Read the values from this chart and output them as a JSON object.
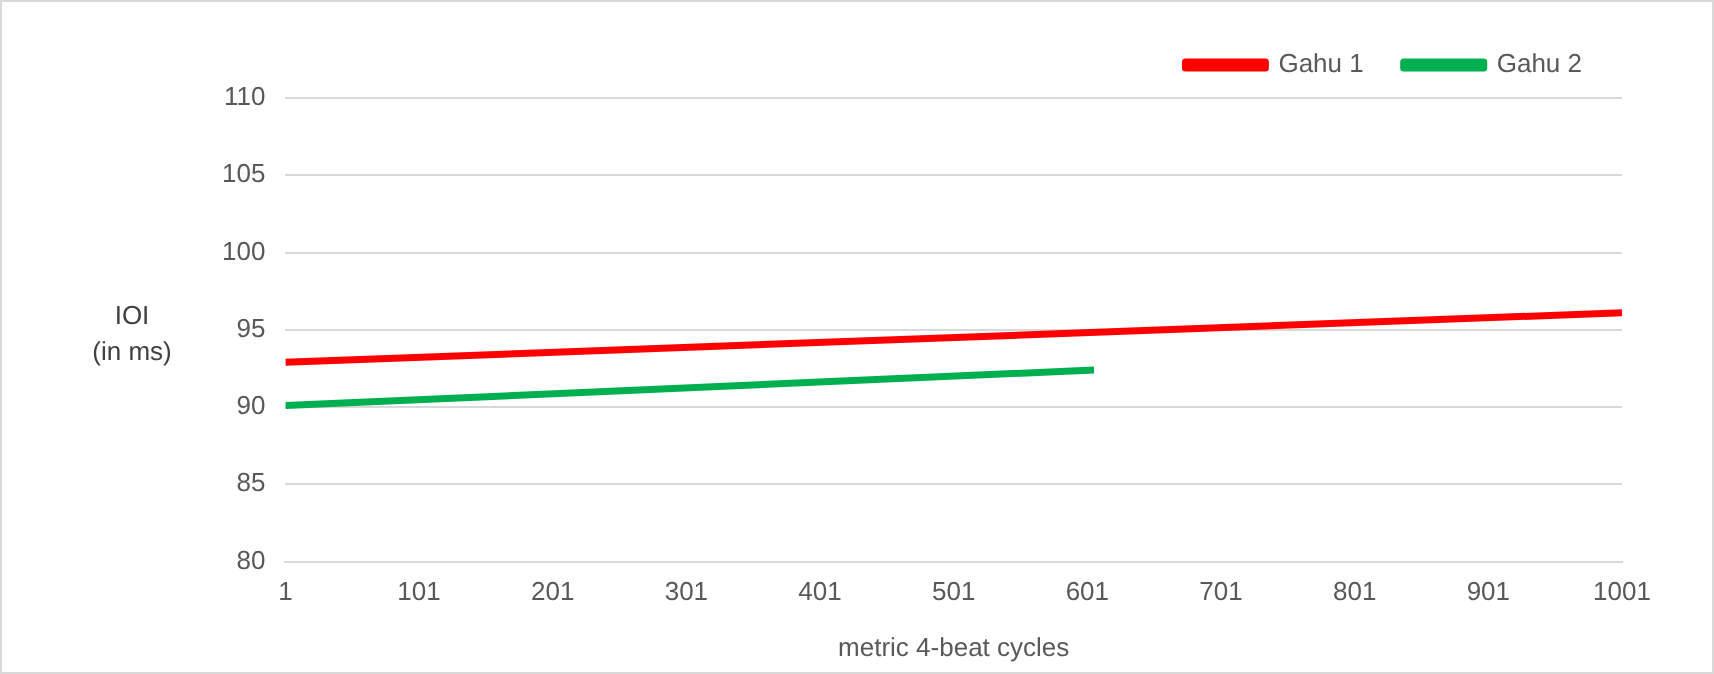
{
  "chart_data": {
    "type": "line",
    "xlabel": "metric 4-beat cycles",
    "ylabel": "IOI\n(in ms)",
    "xlim": [
      1,
      1001
    ],
    "xticks": [
      1,
      101,
      201,
      301,
      401,
      501,
      601,
      701,
      801,
      901,
      1001
    ],
    "ylim": [
      80,
      110
    ],
    "yticks": [
      80,
      85,
      90,
      95,
      100,
      105,
      110
    ],
    "grid": "y",
    "legend": "top right",
    "marker": "none",
    "line_style": "solid",
    "series": [
      {
        "name": "Gahu 1",
        "color": "#ff0000",
        "x": [
          1,
          1001
        ],
        "values": [
          92.9,
          96.1
        ]
      },
      {
        "name": "Gahu 2",
        "color": "#00b050",
        "x": [
          1,
          606
        ],
        "values": [
          90.1,
          92.4
        ]
      }
    ]
  }
}
